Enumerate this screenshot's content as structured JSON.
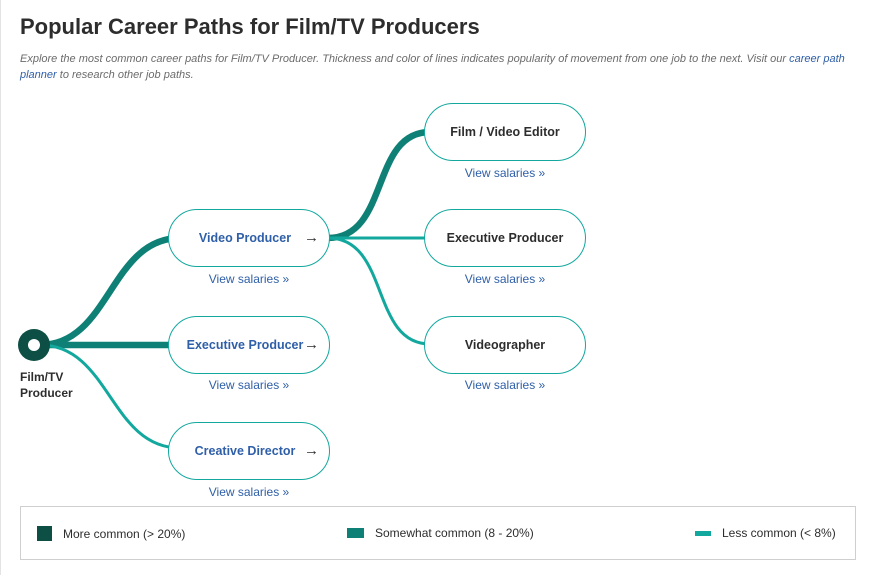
{
  "header": {
    "title": "Popular Career Paths for Film/TV Producers",
    "description_prefix": "Explore the most common career paths for Film/TV Producer. Thickness and color of lines indicates popularity of movement from one job to the next. Visit our ",
    "description_link": "career path planner",
    "description_suffix": " to research other job paths."
  },
  "origin": {
    "label": "Film/TV Producer"
  },
  "nodes": {
    "video_producer": {
      "label": "Video Producer",
      "arrow": "→",
      "salary_link": "View salaries »"
    },
    "executive_producer_1": {
      "label": "Executive Producer",
      "arrow": "→",
      "salary_link": "View salaries »"
    },
    "creative_director": {
      "label": "Creative Director",
      "arrow": "→",
      "salary_link": "View salaries »"
    },
    "film_video_editor": {
      "label": "Film / Video Editor",
      "salary_link": "View salaries »"
    },
    "executive_producer_2": {
      "label": "Executive Producer",
      "salary_link": "View salaries »"
    },
    "videographer": {
      "label": "Videographer",
      "salary_link": "View salaries »"
    }
  },
  "edges": [
    {
      "from": "Film/TV Producer",
      "to": "Video Producer",
      "level": "somewhat"
    },
    {
      "from": "Film/TV Producer",
      "to": "Executive Producer",
      "level": "somewhat"
    },
    {
      "from": "Film/TV Producer",
      "to": "Creative Director",
      "level": "less"
    },
    {
      "from": "Video Producer",
      "to": "Film / Video Editor",
      "level": "somewhat"
    },
    {
      "from": "Video Producer",
      "to": "Executive Producer",
      "level": "less"
    },
    {
      "from": "Video Producer",
      "to": "Videographer",
      "level": "less"
    }
  ],
  "legend": {
    "more": {
      "label": "More common (> 20%)",
      "color": "#0d4f45"
    },
    "somewhat": {
      "label": "Somewhat common (8 - 20%)",
      "color": "#0f8075"
    },
    "less": {
      "label": "Less common (< 8%)",
      "color": "#13a89e"
    }
  }
}
